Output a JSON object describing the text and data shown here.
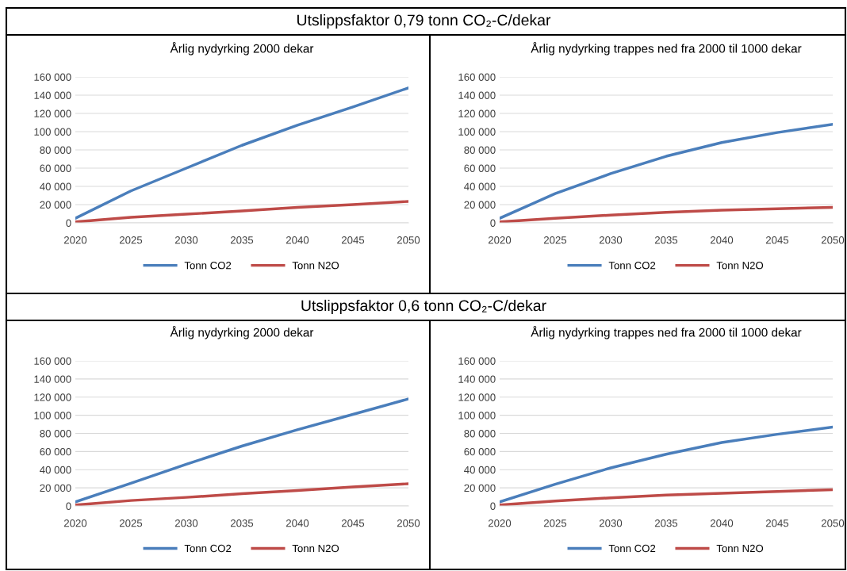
{
  "chart_data": [
    {
      "type": "line",
      "title": "Årlig nydyrking 2000 dekar",
      "annotations": [
        "Utslippsfaktor 0,79 tonn CO₂-C/dekar"
      ],
      "x": [
        2020,
        2025,
        2030,
        2035,
        2040,
        2045,
        2050
      ],
      "xlim": [
        2020,
        2050
      ],
      "xticks": [
        2020,
        2025,
        2030,
        2035,
        2040,
        2045,
        2050
      ],
      "ylim": [
        0,
        160000
      ],
      "yticks": [
        {
          "value": 0,
          "label": "0"
        },
        {
          "value": 20000,
          "label": "20 000"
        },
        {
          "value": 40000,
          "label": "40 000"
        },
        {
          "value": 60000,
          "label": "60 000"
        },
        {
          "value": 80000,
          "label": "80 000"
        },
        {
          "value": 100000,
          "label": "100 000"
        },
        {
          "value": 120000,
          "label": "120 000"
        },
        {
          "value": 140000,
          "label": "140 000"
        },
        {
          "value": 160000,
          "label": "160 000"
        }
      ],
      "grid": "y",
      "legend": "bottom",
      "series": [
        {
          "name": "Tonn CO2",
          "color": "#4a7ebb",
          "values": [
            5000,
            35000,
            60000,
            85000,
            107000,
            127000,
            148000
          ]
        },
        {
          "name": "Tonn N2O",
          "color": "#be4b48",
          "values": [
            1000,
            6000,
            9500,
            13000,
            17000,
            20000,
            23500
          ]
        }
      ]
    },
    {
      "type": "line",
      "title": "Årlig nydyrking trappes ned fra 2000 til 1000 dekar",
      "x": [
        2020,
        2025,
        2030,
        2035,
        2040,
        2045,
        2050
      ],
      "xlim": [
        2020,
        2050
      ],
      "xticks": [
        2020,
        2025,
        2030,
        2035,
        2040,
        2045,
        2050
      ],
      "ylim": [
        0,
        160000
      ],
      "yticks": [
        {
          "value": 0,
          "label": "0"
        },
        {
          "value": 20000,
          "label": "20 000"
        },
        {
          "value": 40000,
          "label": "40 000"
        },
        {
          "value": 60000,
          "label": "60 000"
        },
        {
          "value": 80000,
          "label": "80 000"
        },
        {
          "value": 100000,
          "label": "100 000"
        },
        {
          "value": 120000,
          "label": "120 000"
        },
        {
          "value": 140000,
          "label": "140 000"
        },
        {
          "value": 160000,
          "label": "160 000"
        }
      ],
      "grid": "y",
      "legend": "bottom",
      "series": [
        {
          "name": "Tonn CO2",
          "color": "#4a7ebb",
          "values": [
            5000,
            32000,
            54000,
            73000,
            88000,
            99000,
            108000
          ]
        },
        {
          "name": "Tonn N2O",
          "color": "#be4b48",
          "values": [
            1000,
            5000,
            8500,
            11500,
            14000,
            15500,
            17000
          ]
        }
      ]
    },
    {
      "type": "line",
      "title": "Årlig nydyrking 2000 dekar",
      "annotations": [
        "Utslippsfaktor 0,6 tonn CO₂-C/dekar"
      ],
      "x": [
        2020,
        2025,
        2030,
        2035,
        2040,
        2045,
        2050
      ],
      "xlim": [
        2020,
        2050
      ],
      "xticks": [
        2020,
        2025,
        2030,
        2035,
        2040,
        2045,
        2050
      ],
      "ylim": [
        0,
        160000
      ],
      "yticks": [
        {
          "value": 0,
          "label": "0"
        },
        {
          "value": 20000,
          "label": "20 000"
        },
        {
          "value": 40000,
          "label": "40 000"
        },
        {
          "value": 60000,
          "label": "60 000"
        },
        {
          "value": 80000,
          "label": "80 000"
        },
        {
          "value": 100000,
          "label": "100 000"
        },
        {
          "value": 120000,
          "label": "120 000"
        },
        {
          "value": 140000,
          "label": "140 000"
        },
        {
          "value": 160000,
          "label": "160 000"
        }
      ],
      "grid": "y",
      "legend": "bottom",
      "series": [
        {
          "name": "Tonn CO2",
          "color": "#4a7ebb",
          "values": [
            4500,
            25000,
            46000,
            66000,
            84000,
            101000,
            118000
          ]
        },
        {
          "name": "Tonn N2O",
          "color": "#be4b48",
          "values": [
            1000,
            6000,
            9500,
            13500,
            17000,
            21000,
            24500
          ]
        }
      ]
    },
    {
      "type": "line",
      "title": "Årlig nydyrking trappes ned fra 2000 til 1000 dekar",
      "x": [
        2020,
        2025,
        2030,
        2035,
        2040,
        2045,
        2050
      ],
      "xlim": [
        2020,
        2050
      ],
      "xticks": [
        2020,
        2025,
        2030,
        2035,
        2040,
        2045,
        2050
      ],
      "ylim": [
        0,
        160000
      ],
      "yticks": [
        {
          "value": 0,
          "label": "0"
        },
        {
          "value": 20000,
          "label": "20 000"
        },
        {
          "value": 40000,
          "label": "40 000"
        },
        {
          "value": 60000,
          "label": "60 000"
        },
        {
          "value": 80000,
          "label": "80 000"
        },
        {
          "value": 100000,
          "label": "100 000"
        },
        {
          "value": 120000,
          "label": "120 000"
        },
        {
          "value": 140000,
          "label": "140 000"
        },
        {
          "value": 160000,
          "label": "160 000"
        }
      ],
      "grid": "y",
      "legend": "bottom",
      "series": [
        {
          "name": "Tonn CO2",
          "color": "#4a7ebb",
          "values": [
            4500,
            24000,
            42000,
            57000,
            70000,
            79000,
            87000
          ]
        },
        {
          "name": "Tonn N2O",
          "color": "#be4b48",
          "values": [
            1000,
            5500,
            9000,
            12000,
            14000,
            16000,
            18000
          ]
        }
      ]
    }
  ]
}
